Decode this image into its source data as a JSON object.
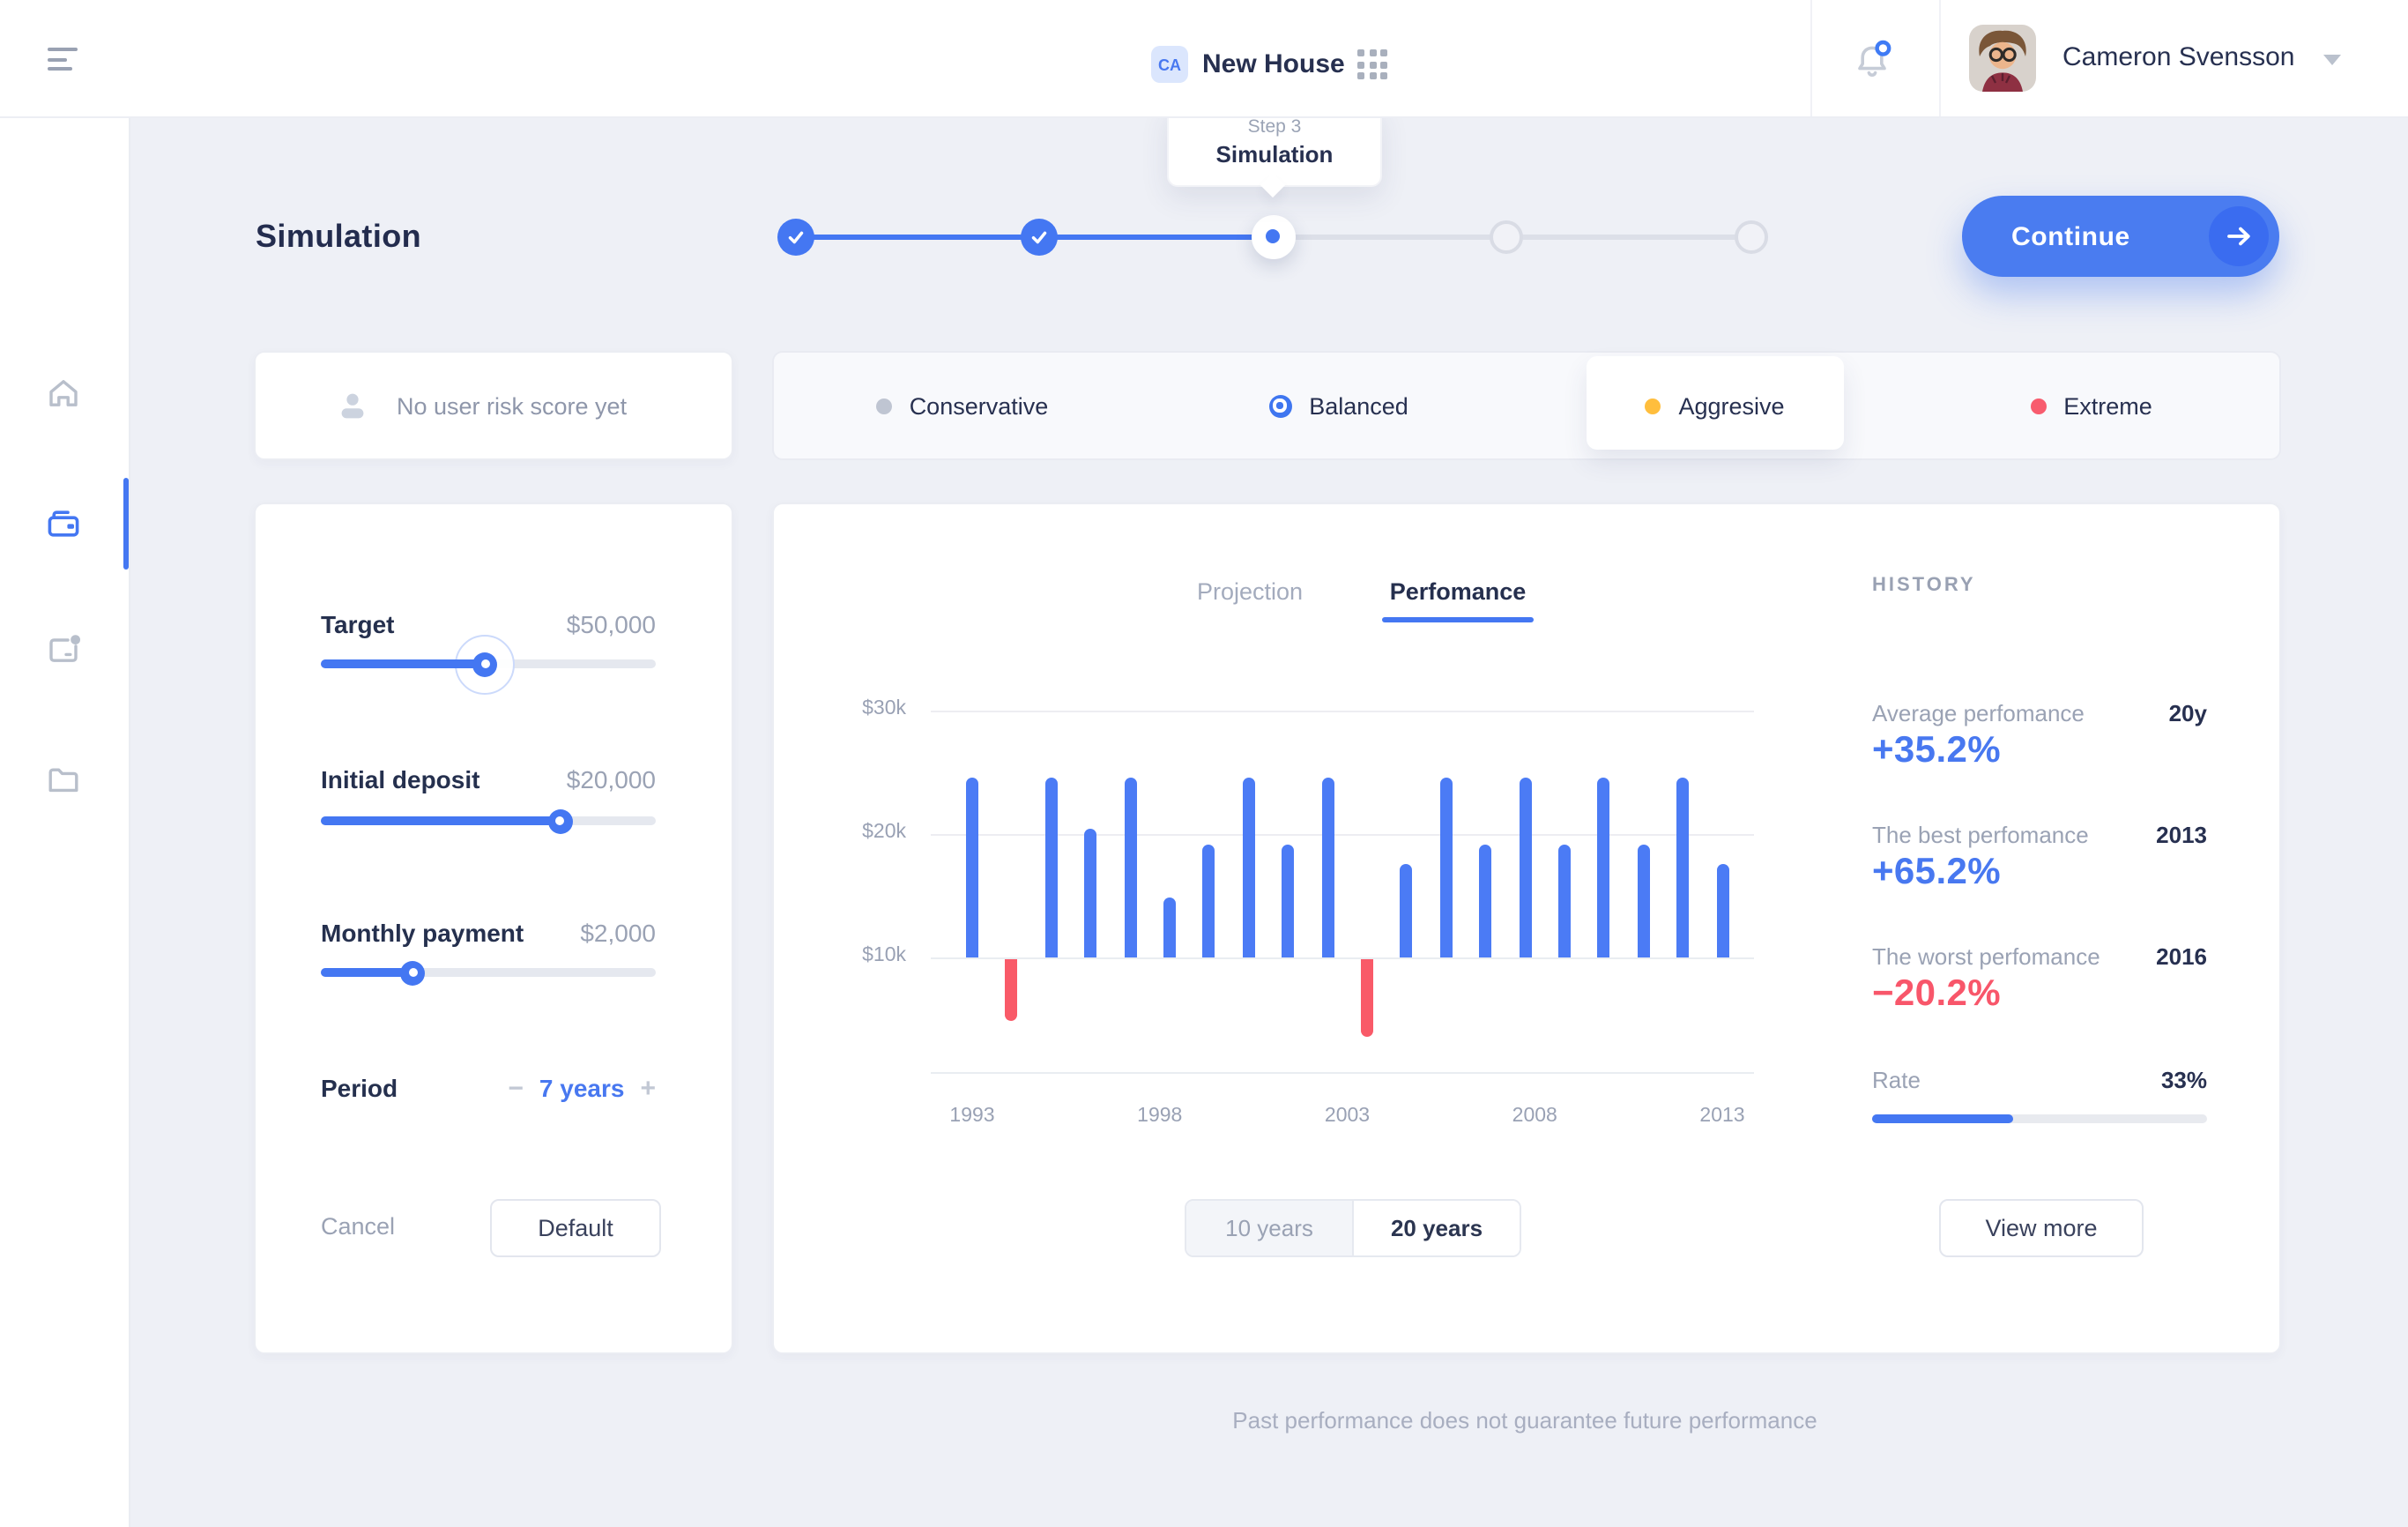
{
  "header": {
    "workspace_badge": "CA",
    "title": "New House",
    "user_name": "Cameron Svensson",
    "notification_has_unread": true
  },
  "sidebar": {
    "items": [
      {
        "icon": "home-icon",
        "active": false
      },
      {
        "icon": "wallet-icon",
        "active": true
      },
      {
        "icon": "project-notification-icon",
        "active": false
      },
      {
        "icon": "folder-icon",
        "active": false
      }
    ]
  },
  "page": {
    "title": "Simulation",
    "footer_disclaimer": "Past performance does not guarantee future performance"
  },
  "stepper": {
    "tooltip": {
      "step": "Step 3",
      "label": "Simulation"
    },
    "steps": [
      {
        "state": "done"
      },
      {
        "state": "done"
      },
      {
        "state": "active"
      },
      {
        "state": "todo"
      },
      {
        "state": "todo"
      }
    ],
    "continue_label": "Continue"
  },
  "risk": {
    "empty_label": "No user risk score yet",
    "options": [
      {
        "label": "Conservative",
        "dot_color": "#bfc5d2",
        "selected": false,
        "highlighted": false
      },
      {
        "label": "Balanced",
        "dot_color": "#3f76f0",
        "selected": true,
        "highlighted": false
      },
      {
        "label": "Aggresive",
        "dot_color": "#ffbe3d",
        "selected": false,
        "highlighted": true
      },
      {
        "label": "Extreme",
        "dot_color": "#f85c6e",
        "selected": false,
        "highlighted": false
      }
    ]
  },
  "form": {
    "sliders": [
      {
        "label": "Target",
        "value": "$50,000",
        "percent": 49,
        "active_halo": true
      },
      {
        "label": "Initial deposit",
        "value": "$20,000",
        "percent": 71.5,
        "active_halo": false
      },
      {
        "label": "Monthly payment",
        "value": "$2,000",
        "percent": 27.5,
        "active_halo": false
      }
    ],
    "period": {
      "label": "Period",
      "minus": "−",
      "value": "7 years",
      "plus": "+"
    },
    "cancel_label": "Cancel",
    "default_label": "Default"
  },
  "chart": {
    "tabs": [
      {
        "label": "Projection",
        "active": false
      },
      {
        "label": "Perfomance",
        "active": true
      }
    ],
    "range_toggle": [
      {
        "label": "10 years",
        "active": false
      },
      {
        "label": "20 years",
        "active": true
      }
    ]
  },
  "chart_data": {
    "type": "bar",
    "title": "Perfomance",
    "unit": "USD thousands",
    "baseline_k": 10,
    "ylim_k": [
      0,
      31
    ],
    "y_ticks": [
      "$30k",
      "$20k",
      "$10k"
    ],
    "y_tick_values_k": [
      30,
      20,
      10
    ],
    "x_tick_labels": [
      "1993",
      "1998",
      "2003",
      "2008",
      "2013"
    ],
    "grid": "horizontal",
    "note": "Bars rise from the $10k baseline; red bars drop below it toward their end value.",
    "bars": [
      {
        "year": 1993,
        "end_value_k": 24.6,
        "direction": "up"
      },
      {
        "year": 1994,
        "end_value_k": 5.0,
        "direction": "down"
      },
      {
        "year": 1995,
        "end_value_k": 24.6,
        "direction": "up"
      },
      {
        "year": 1996,
        "end_value_k": 20.5,
        "direction": "up"
      },
      {
        "year": 1997,
        "end_value_k": 24.6,
        "direction": "up"
      },
      {
        "year": 1998,
        "end_value_k": 14.9,
        "direction": "up"
      },
      {
        "year": 1999,
        "end_value_k": 19.1,
        "direction": "up"
      },
      {
        "year": 2000,
        "end_value_k": 24.6,
        "direction": "up"
      },
      {
        "year": 2001,
        "end_value_k": 19.1,
        "direction": "up"
      },
      {
        "year": 2002,
        "end_value_k": 24.6,
        "direction": "up"
      },
      {
        "year": 2003,
        "end_value_k": 3.7,
        "direction": "down"
      },
      {
        "year": 2004,
        "end_value_k": 17.6,
        "direction": "up"
      },
      {
        "year": 2005,
        "end_value_k": 24.6,
        "direction": "up"
      },
      {
        "year": 2006,
        "end_value_k": 19.1,
        "direction": "up"
      },
      {
        "year": 2007,
        "end_value_k": 24.6,
        "direction": "up"
      },
      {
        "year": 2008,
        "end_value_k": 19.1,
        "direction": "up"
      },
      {
        "year": 2009,
        "end_value_k": 24.6,
        "direction": "up"
      },
      {
        "year": 2010,
        "end_value_k": 19.1,
        "direction": "up"
      },
      {
        "year": 2011,
        "end_value_k": 24.6,
        "direction": "up"
      },
      {
        "year": 2012,
        "end_value_k": 17.6,
        "direction": "up"
      }
    ]
  },
  "history": {
    "title": "HISTORY",
    "items": [
      {
        "label": "Average perfomance",
        "tag": "20y",
        "value": "+35.2%",
        "color": "#4878f0"
      },
      {
        "label": "The best perfomance",
        "tag": "2013",
        "value": "+65.2%",
        "color": "#4878f0"
      },
      {
        "label": "The worst perfomance",
        "tag": "2016",
        "value": "−20.2%",
        "color": "#f8566a"
      }
    ],
    "rate": {
      "label": "Rate",
      "value": "33%",
      "fill_percent": 42
    },
    "view_more_label": "View more"
  },
  "colors": {
    "accent_blue": "#4477f2",
    "bar_blue": "#4b7bf5",
    "negative_red": "#f95a68",
    "warning_yellow": "#ffbe3d",
    "neutral_dot": "#bfc5d2",
    "page_background": "#eef0f6",
    "text_navy": "#273050",
    "text_gray": "#99a1b4"
  }
}
